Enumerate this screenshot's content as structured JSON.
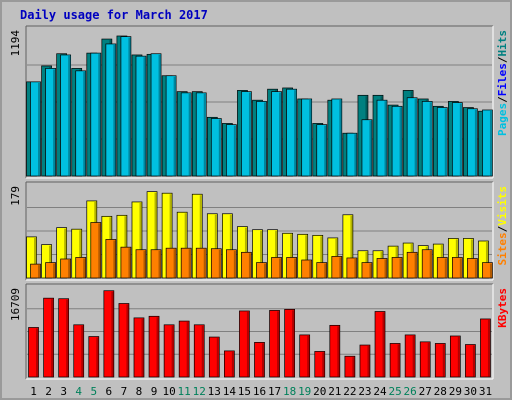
{
  "chart_data": {
    "type": "bar",
    "title": "Daily usage for March 2017",
    "days": [
      "1",
      "2",
      "3",
      "4",
      "5",
      "6",
      "7",
      "8",
      "9",
      "10",
      "11",
      "12",
      "13",
      "14",
      "15",
      "16",
      "17",
      "18",
      "19",
      "20",
      "21",
      "22",
      "23",
      "24",
      "25",
      "26",
      "27",
      "28",
      "29",
      "30",
      "31"
    ],
    "weekend_days": [
      "4",
      "5",
      "11",
      "12",
      "18",
      "19",
      "25",
      "26"
    ],
    "panels": [
      {
        "id": "hits",
        "max_label": "1194",
        "ymax": 1194,
        "legend": [
          {
            "text": "Pages",
            "color": "#00c0e0"
          },
          {
            "text": "Files",
            "color": "#0000ff"
          },
          {
            "text": "Hits",
            "color": "#008080"
          }
        ],
        "series": [
          {
            "name": "Hits",
            "color": "#008080",
            "values": [
              770,
              900,
              1000,
              880,
              1005,
              1120,
              1145,
              990,
              995,
              820,
              690,
              690,
              480,
              430,
              700,
              620,
              710,
              720,
              630,
              430,
              620,
              350,
              660,
              660,
              580,
              700,
              630,
              570,
              610,
              560,
              530
            ]
          },
          {
            "name": "Files",
            "color": "#00c0e0",
            "values": [
              770,
              880,
              990,
              860,
              1005,
              1080,
              1140,
              980,
              1000,
              820,
              680,
              680,
              470,
              420,
              690,
              610,
              690,
              710,
              630,
              420,
              630,
              350,
              460,
              620,
              570,
              640,
              610,
              560,
              600,
              550,
              540
            ]
          }
        ]
      },
      {
        "id": "visits",
        "max_label": "179",
        "ymax": 179,
        "legend": [
          {
            "text": "Sites",
            "color": "#ff8000"
          },
          {
            "text": "Visits",
            "color": "#ffff00"
          }
        ],
        "series": [
          {
            "name": "Visits",
            "color": "#ffff00",
            "values": [
              80,
              65,
              98,
              95,
              150,
              120,
              122,
              148,
              168,
              165,
              128,
              163,
              125,
              125,
              100,
              94,
              94,
              87,
              85,
              83,
              78,
              123,
              53,
              53,
              62,
              68,
              63,
              66,
              77,
              77,
              72
            ]
          },
          {
            "name": "Sites",
            "color": "#ff8000",
            "values": [
              27,
              30,
              37,
              40,
              108,
              75,
              60,
              55,
              55,
              58,
              58,
              58,
              57,
              55,
              50,
              30,
              40,
              40,
              35,
              30,
              42,
              39,
              30,
              38,
              40,
              50,
              55,
              40,
              40,
              38,
              30
            ]
          }
        ]
      },
      {
        "id": "kbytes",
        "max_label": "16709",
        "ymax": 16709,
        "legend": [
          {
            "text": "KBytes",
            "color": "#ff0000"
          }
        ],
        "series": [
          {
            "name": "KBytes",
            "color": "#ff0000",
            "values": [
              9300,
              14800,
              14700,
              9800,
              7600,
              16200,
              13800,
              11100,
              11400,
              9800,
              10500,
              9800,
              7500,
              4900,
              12400,
              6500,
              12500,
              12700,
              7900,
              4800,
              9700,
              3900,
              6000,
              12300,
              6300,
              7900,
              6600,
              6300,
              7700,
              6100,
              10900
            ]
          }
        ]
      }
    ]
  }
}
